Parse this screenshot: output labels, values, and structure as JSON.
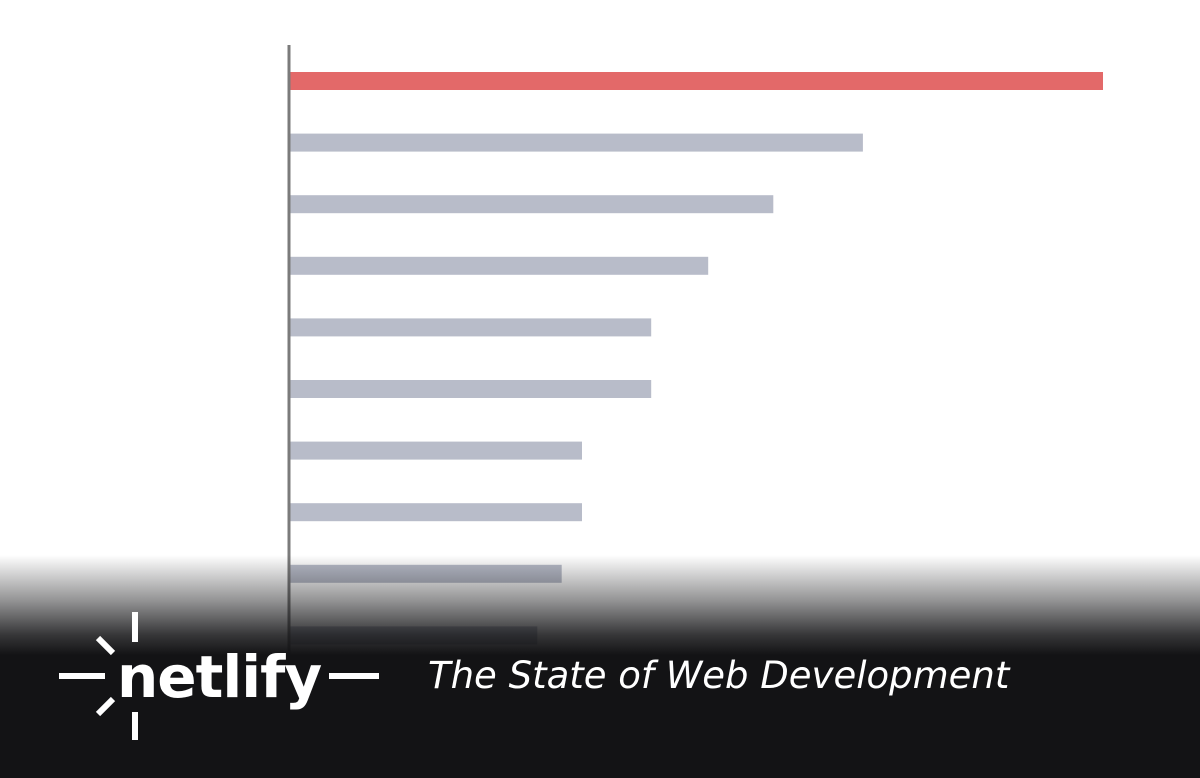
{
  "chart_data": {
    "type": "bar",
    "orientation": "horizontal",
    "categories": [
      "",
      "",
      "",
      "",
      "",
      "",
      "",
      "",
      "",
      ""
    ],
    "values": [
      100,
      70.5,
      59.5,
      51.5,
      44.5,
      44.5,
      36,
      36,
      33.5,
      30.5
    ],
    "xlim": [
      0,
      100
    ],
    "grid": false,
    "highlight_index": 0,
    "colors": {
      "highlight": "#e36969",
      "bar": "#b8bcc9",
      "axis": "#7b7b7b"
    }
  },
  "brand": {
    "name": "netlify",
    "tagline": "The State of Web Development"
  }
}
